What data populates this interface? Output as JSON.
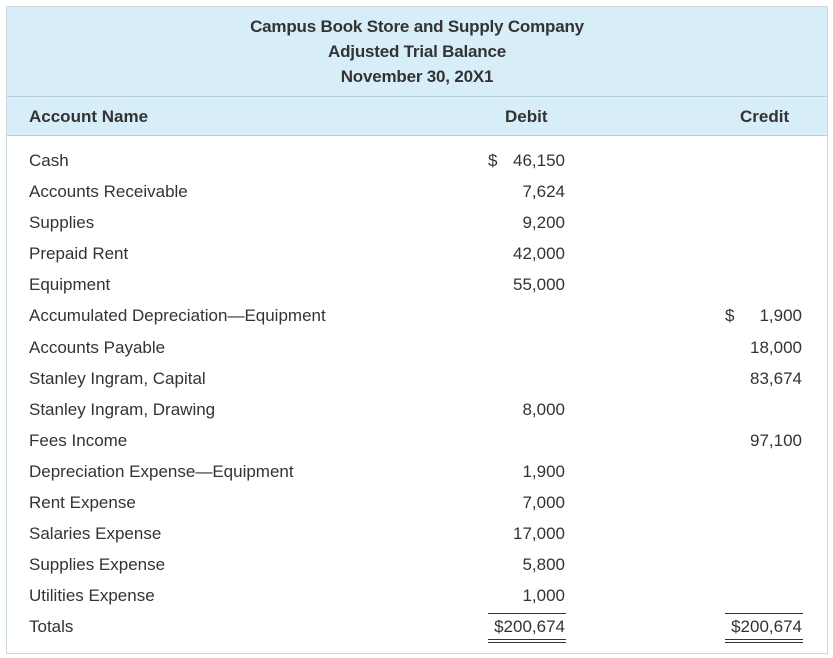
{
  "header": {
    "company": "Campus Book Store and Supply Company",
    "statement": "Adjusted Trial Balance",
    "date": "November 30, 20X1"
  },
  "columns": {
    "name": "Account Name",
    "debit": "Debit",
    "credit": "Credit"
  },
  "currency_symbol": "$",
  "rows": [
    {
      "name": "Cash",
      "debit": "46,150",
      "credit": ""
    },
    {
      "name": "Accounts Receivable",
      "debit": "7,624",
      "credit": ""
    },
    {
      "name": "Supplies",
      "debit": "9,200",
      "credit": ""
    },
    {
      "name": "Prepaid Rent",
      "debit": "42,000",
      "credit": ""
    },
    {
      "name": "Equipment",
      "debit": "55,000",
      "credit": ""
    },
    {
      "name": "Accumulated Depreciation—Equipment",
      "debit": "",
      "credit": "1,900"
    },
    {
      "name": "Accounts Payable",
      "debit": "",
      "credit": "18,000"
    },
    {
      "name": "Stanley Ingram, Capital",
      "debit": "",
      "credit": "83,674"
    },
    {
      "name": "Stanley Ingram, Drawing",
      "debit": "8,000",
      "credit": ""
    },
    {
      "name": "Fees Income",
      "debit": "",
      "credit": "97,100"
    },
    {
      "name": "Depreciation Expense—Equipment",
      "debit": "1,900",
      "credit": ""
    },
    {
      "name": "Rent Expense",
      "debit": "7,000",
      "credit": ""
    },
    {
      "name": "Salaries Expense",
      "debit": "17,000",
      "credit": ""
    },
    {
      "name": "Supplies Expense",
      "debit": "5,800",
      "credit": ""
    },
    {
      "name": "Utilities Expense",
      "debit": "1,000",
      "credit": ""
    }
  ],
  "totals": {
    "label": "Totals",
    "debit": "$200,674",
    "credit": "$200,674"
  }
}
